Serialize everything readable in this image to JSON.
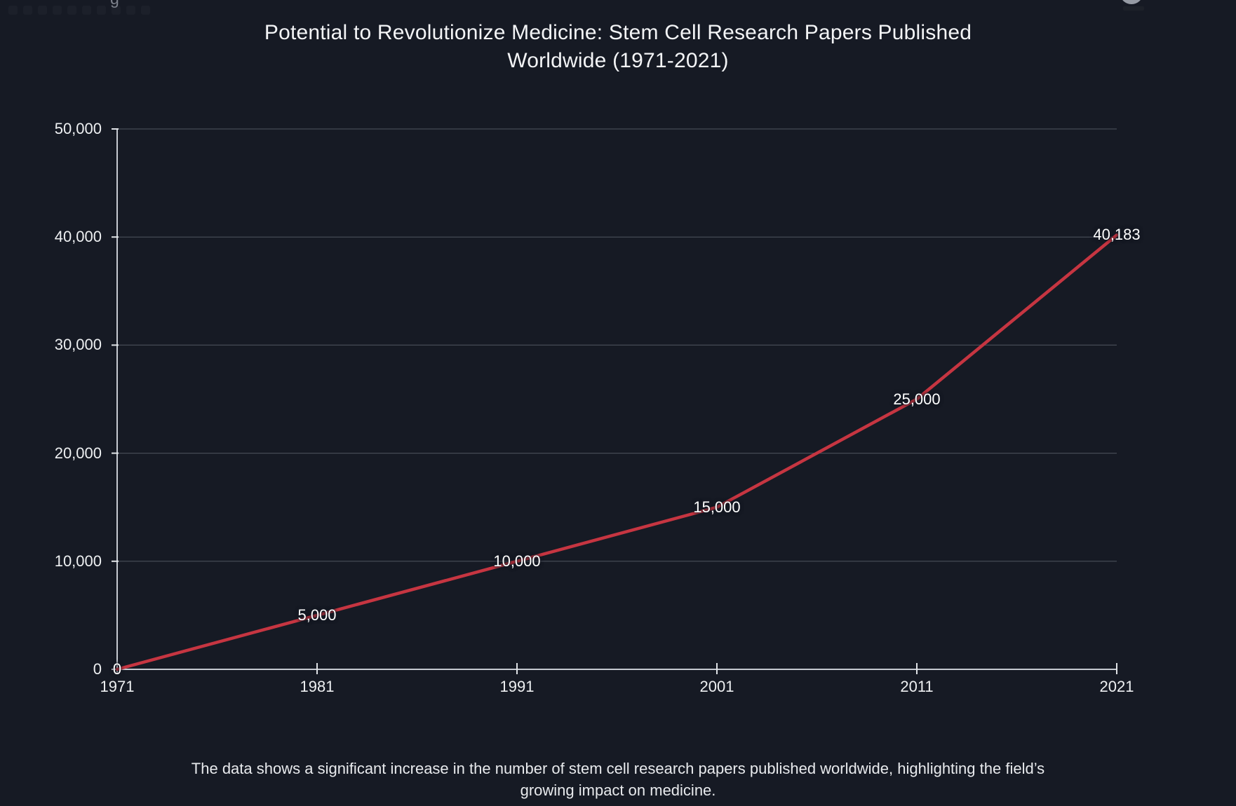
{
  "title": {
    "line1": "Potential to Revolutionize Medicine: Stem Cell Research Papers Published",
    "line2": "Worldwide (1971-2021)"
  },
  "caption": {
    "line1": "The data shows a significant increase in the number of stem cell research papers published worldwide, highlighting the field’s",
    "line2": "growing impact on medicine."
  },
  "remnants": {
    "cropped_text": "g"
  },
  "chart_data": {
    "type": "line",
    "title": "Potential to Revolutionize Medicine: Stem Cell Research Papers Published Worldwide (1971-2021)",
    "series_name": "Stem cell research papers published worldwide",
    "x": [
      1971,
      1981,
      1991,
      2001,
      2011,
      2021
    ],
    "values": [
      0,
      5000,
      10000,
      15000,
      25000,
      40183
    ],
    "point_labels": [
      "0",
      "5,000",
      "10,000",
      "15,000",
      "25,000",
      "40,183"
    ],
    "x_tick_labels": [
      "1971",
      "1981",
      "1991",
      "2001",
      "2011",
      "2021"
    ],
    "x_ticks": [
      1971,
      1981,
      1991,
      2001,
      2011,
      2021
    ],
    "y_tick_labels": [
      "0",
      "10,000",
      "20,000",
      "30,000",
      "40,000",
      "50,000"
    ],
    "y_ticks": [
      0,
      10000,
      20000,
      30000,
      40000,
      50000
    ],
    "xlim": [
      1971,
      2021
    ],
    "ylim": [
      0,
      50000
    ],
    "xlabel": "",
    "ylabel": "",
    "grid": "horizontal",
    "legend": "none",
    "colors": {
      "background": "#161a24",
      "line": "#c63541",
      "axis": "#c6cad1",
      "tick": "#dfe2e6",
      "grid": "#454a55",
      "label": "#ffffff"
    }
  }
}
